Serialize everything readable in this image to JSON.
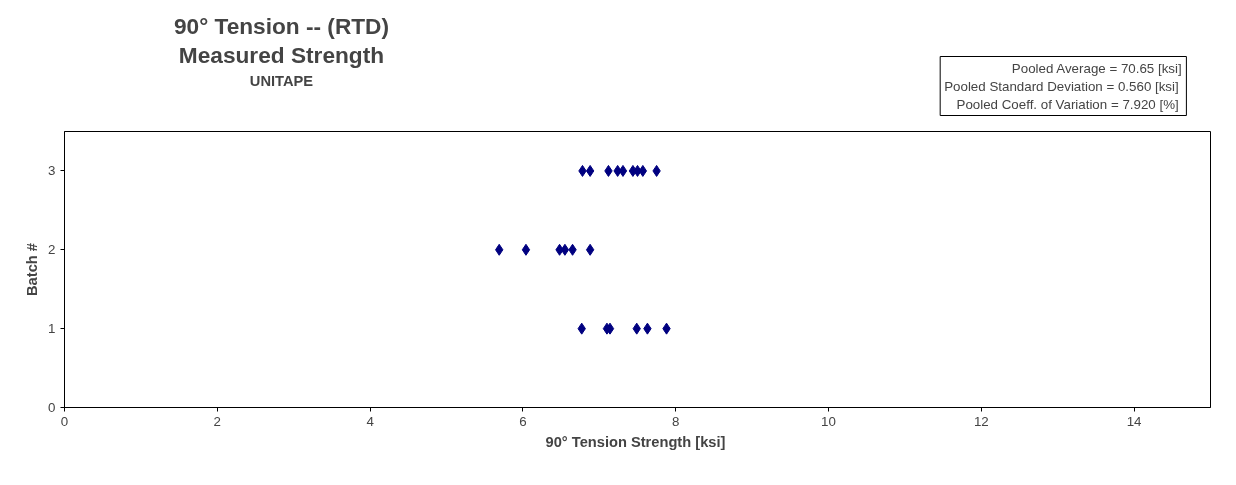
{
  "chart_data": {
    "type": "scatter",
    "title": "90° Tension -- (RTD)\nMeasured Strength",
    "subtitle": "UNITAPE",
    "xlabel": "90° Tension Strength  [ksi]",
    "ylabel": "Batch #",
    "annotations": [
      "Pooled Average = 70.65 [ksi]",
      "Pooled Standard Deviation = 0.560  [ksi]",
      "Pooled Coeff. of  Variation = 7.920 [%]"
    ],
    "series": [
      {
        "color": "#000080",
        "x": [
          6.77,
          7.1,
          7.14,
          7.49,
          7.63,
          7.88
        ],
        "values": [
          1,
          1,
          1,
          1,
          1,
          1
        ]
      },
      {
        "color": "#000080",
        "x": [
          5.69,
          6.04,
          6.48,
          6.55,
          6.65,
          6.88
        ],
        "values": [
          2,
          2,
          2,
          2,
          2,
          2
        ]
      },
      {
        "color": "#000080",
        "x": [
          6.78,
          6.88,
          7.12,
          7.24,
          7.31,
          7.44,
          7.5,
          7.57,
          7.75
        ],
        "values": [
          3,
          3,
          3,
          3,
          3,
          3,
          3,
          3,
          3
        ]
      }
    ],
    "xlim": [
      0,
      15
    ],
    "ylim": [
      0,
      3.5
    ],
    "xticks": [
      0,
      2,
      4,
      6,
      8,
      10,
      12,
      14
    ],
    "yticks": [
      0,
      1,
      2,
      3
    ],
    "grid": false,
    "marker": "diamond"
  }
}
